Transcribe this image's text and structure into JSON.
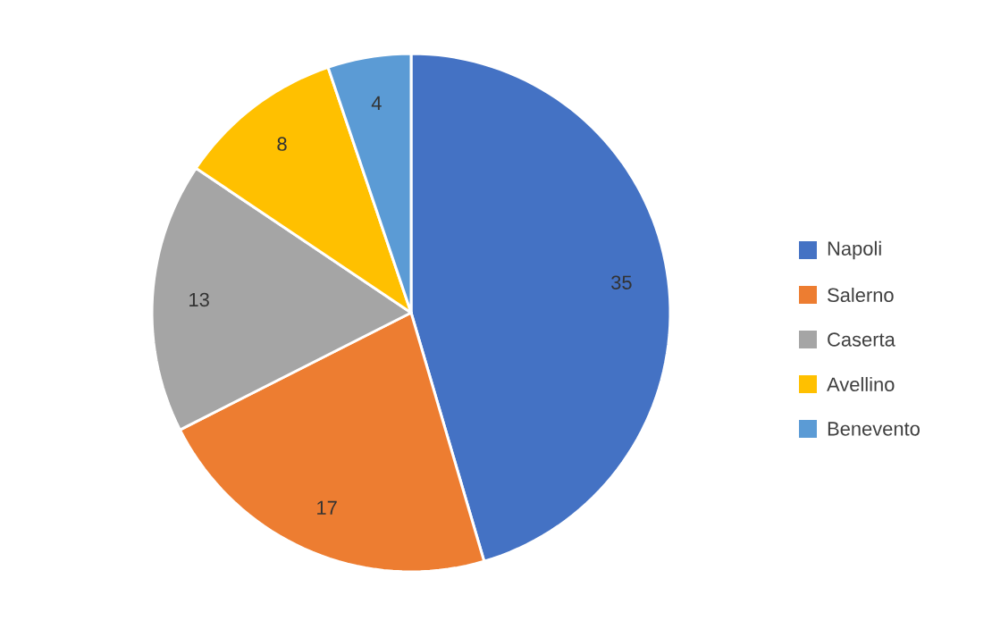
{
  "chart_data": {
    "type": "pie",
    "categories": [
      "Napoli",
      "Salerno",
      "Caserta",
      "Avellino",
      "Benevento"
    ],
    "values": [
      35,
      17,
      13,
      8,
      4
    ],
    "colors": [
      "#4472c4",
      "#ed7d31",
      "#a5a5a5",
      "#ffc000",
      "#5b9bd5"
    ],
    "value_labels": [
      "35",
      "17",
      "13",
      "8",
      "4"
    ],
    "legend": "right"
  }
}
